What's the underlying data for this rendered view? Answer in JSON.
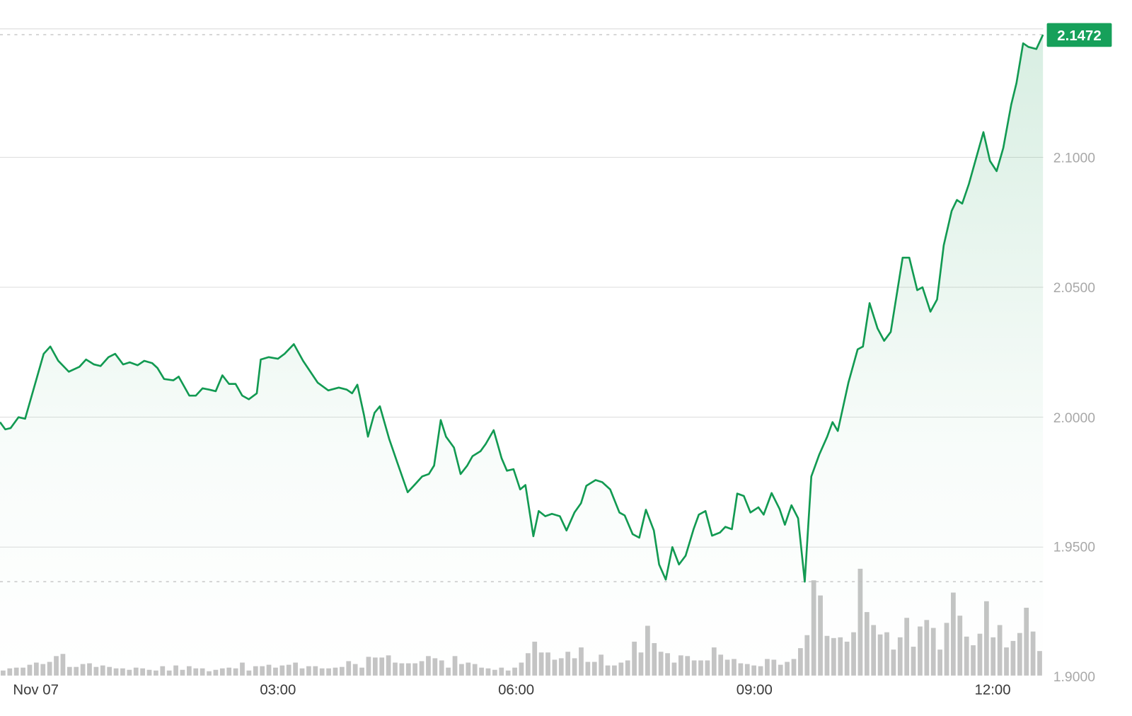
{
  "chart_data": {
    "type": "line",
    "x_tick_labels": [
      "Nov 07",
      "03:00",
      "06:00",
      "09:00",
      "12:00"
    ],
    "y_tick_labels": [
      "2.1000",
      "2.0500",
      "2.0000",
      "1.9500",
      "1.9000"
    ],
    "ylim": [
      1.9,
      2.1472
    ],
    "grid": true,
    "last_price_label": "2.1472",
    "high_reference": 2.1472,
    "low_reference": 1.9367,
    "colors": {
      "line": "#129a52",
      "badge": "#16a05a",
      "volume": "#c4c4c4",
      "grid": "#dcdcdc"
    },
    "series": [
      {
        "x": [
          "23:30",
          "23:34",
          "23:38",
          "23:44",
          "23:49",
          "00:03",
          "00:08",
          "00:14",
          "00:22",
          "00:30",
          "00:35",
          "00:41",
          "00:46",
          "00:52",
          "00:57",
          "01:03",
          "01:08",
          "01:14",
          "01:19",
          "01:25",
          "01:29",
          "01:34",
          "01:41",
          "01:45",
          "01:53",
          "01:58",
          "02:03",
          "02:08",
          "02:13",
          "02:18",
          "02:23",
          "02:28",
          "02:33",
          "02:38",
          "02:44",
          "02:47",
          "02:53",
          "03:00",
          "03:05",
          "03:12",
          "03:19",
          "03:30",
          "03:38",
          "03:46",
          "03:52",
          "03:56",
          "04:00",
          "04:05",
          "04:08",
          "04:13",
          "04:17",
          "04:24",
          "04:30",
          "04:38",
          "04:44",
          "04:49",
          "04:54",
          "04:58",
          "05:03",
          "05:07",
          "05:13",
          "05:18",
          "05:23",
          "05:27",
          "05:33",
          "05:37",
          "05:43",
          "05:49",
          "05:53",
          "05:58",
          "06:03",
          "06:07",
          "06:13",
          "06:17",
          "06:22",
          "06:27",
          "06:33",
          "06:38",
          "06:44",
          "06:49",
          "06:53",
          "07:00",
          "07:05",
          "07:11",
          "07:18",
          "07:22",
          "07:28",
          "07:33",
          "07:38",
          "07:44",
          "07:48",
          "07:53",
          "07:58",
          "08:03",
          "08:08",
          "08:14",
          "08:18",
          "08:23",
          "08:28",
          "08:34",
          "08:38",
          "08:43",
          "08:47",
          "08:52",
          "08:57",
          "09:03",
          "09:07",
          "09:13",
          "09:19",
          "09:23",
          "09:28",
          "09:33",
          "09:38",
          "09:43",
          "09:49",
          "09:55",
          "09:59",
          "10:03",
          "10:11",
          "10:18",
          "10:22",
          "10:27",
          "10:33",
          "10:38",
          "10:43",
          "10:52",
          "10:57",
          "11:03",
          "11:07",
          "11:13",
          "11:18",
          "11:23",
          "11:29",
          "11:33",
          "11:37",
          "11:42",
          "11:53",
          "11:58",
          "12:03",
          "12:08",
          "12:14",
          "12:18",
          "12:23",
          "12:27",
          "12:33",
          "12:38"
        ],
        "y": [
          1.9981,
          1.9953,
          1.9958,
          2.0,
          1.9994,
          2.0244,
          2.0272,
          2.0217,
          2.0175,
          2.0194,
          2.0222,
          2.0203,
          2.0197,
          2.0231,
          2.0244,
          2.0203,
          2.0211,
          2.02,
          2.0217,
          2.0208,
          2.0189,
          2.0147,
          2.0142,
          2.0156,
          2.0083,
          2.0083,
          2.0111,
          2.0106,
          2.01,
          2.0161,
          2.0128,
          2.0128,
          2.0083,
          2.0069,
          2.0092,
          2.0222,
          2.0231,
          2.0225,
          2.0244,
          2.0281,
          2.0217,
          2.0133,
          2.0103,
          2.0114,
          2.0106,
          2.0092,
          2.0125,
          2.0008,
          1.9925,
          2.0017,
          2.0042,
          1.9917,
          1.9828,
          1.9711,
          1.9744,
          1.9772,
          1.9781,
          1.9814,
          1.9989,
          1.9925,
          1.9883,
          1.9781,
          1.9814,
          1.985,
          1.9869,
          1.9897,
          1.995,
          1.9842,
          1.9794,
          1.98,
          1.9722,
          1.9739,
          1.9542,
          1.9639,
          1.9619,
          1.9628,
          1.9619,
          1.9564,
          1.9633,
          1.9669,
          1.9736,
          1.9758,
          1.975,
          1.9722,
          1.9633,
          1.9622,
          1.955,
          1.9536,
          1.9644,
          1.9564,
          1.9433,
          1.9375,
          1.95,
          1.9433,
          1.9467,
          1.9569,
          1.9625,
          1.9639,
          1.9544,
          1.9556,
          1.9578,
          1.9569,
          1.9706,
          1.9697,
          1.9633,
          1.9653,
          1.9625,
          1.9708,
          1.9647,
          1.9586,
          1.9661,
          1.9611,
          1.9367,
          1.9772,
          1.9856,
          1.9925,
          1.9981,
          1.9947,
          2.0133,
          2.0261,
          2.0272,
          2.0439,
          2.0342,
          2.0294,
          2.0328,
          2.0614,
          2.0614,
          2.0489,
          2.05,
          2.0406,
          2.0453,
          2.0661,
          2.0794,
          2.0836,
          2.0822,
          2.0897,
          2.1097,
          2.0986,
          2.0947,
          2.1036,
          2.1203,
          2.1286,
          2.1439,
          2.1425,
          2.1417,
          2.1472
        ]
      }
    ],
    "volume": [
      7,
      10,
      11,
      11,
      15,
      18,
      16,
      19,
      27,
      30,
      12,
      12,
      16,
      17,
      12,
      14,
      12,
      10,
      10,
      8,
      11,
      10,
      8,
      7,
      13,
      7,
      14,
      8,
      13,
      10,
      10,
      6,
      8,
      10,
      11,
      10,
      18,
      7,
      13,
      13,
      15,
      11,
      14,
      15,
      18,
      10,
      13,
      13,
      10,
      10,
      11,
      12,
      20,
      16,
      11,
      26,
      25,
      25,
      28,
      18,
      17,
      17,
      17,
      20,
      27,
      24,
      21,
      11,
      27,
      16,
      18,
      16,
      11,
      10,
      8,
      11,
      7,
      11,
      18,
      31,
      47,
      32,
      32,
      22,
      24,
      33,
      24,
      39,
      19,
      19,
      29,
      14,
      14,
      18,
      21,
      47,
      32,
      69,
      45,
      33,
      31,
      18,
      28,
      27,
      21,
      21,
      21,
      39,
      29,
      22,
      23,
      17,
      16,
      14,
      13,
      23,
      22,
      15,
      19,
      23,
      38,
      56,
      132,
      111,
      55,
      52,
      53,
      47,
      60,
      148,
      88,
      70,
      57,
      60,
      36,
      53,
      80,
      40,
      68,
      77,
      66,
      36,
      73,
      115,
      83,
      54,
      42,
      58,
      103,
      53,
      70,
      39,
      48,
      59,
      94,
      61,
      34
    ]
  }
}
